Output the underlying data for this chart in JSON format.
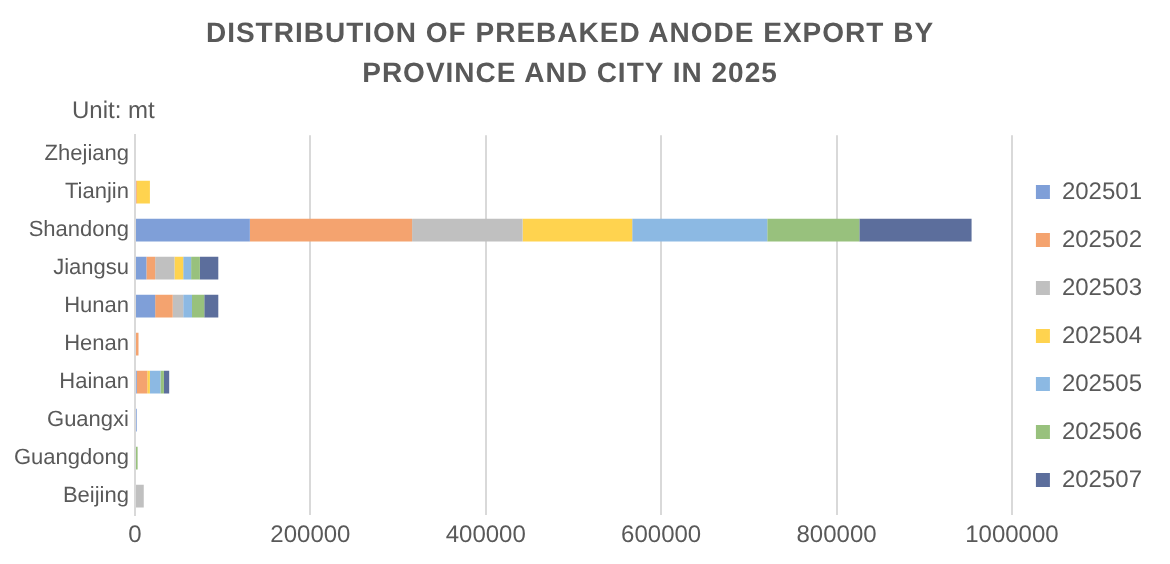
{
  "chart_data": {
    "type": "bar",
    "title": "DISTRIBUTION OF PREBAKED ANODE EXPORT BY PROVINCE AND CITY IN 2025",
    "subtitle": "Unit: mt",
    "orientation": "horizontal",
    "stacked": true,
    "categories": [
      "Zhejiang",
      "Tianjin",
      "Shandong",
      "Jiangsu",
      "Hunan",
      "Henan",
      "Hainan",
      "Guangxi",
      "Guangdong",
      "Beijing"
    ],
    "series": [
      {
        "name": "202501",
        "color": "#7f9fd8",
        "values": [
          0,
          0,
          131000,
          13000,
          23000,
          0,
          2000,
          2000,
          0,
          0
        ]
      },
      {
        "name": "202502",
        "color": "#f4a36f",
        "values": [
          0,
          2000,
          185000,
          10000,
          20000,
          4000,
          12000,
          0,
          0,
          0
        ]
      },
      {
        "name": "202503",
        "color": "#c0c0c0",
        "values": [
          0,
          0,
          126000,
          22000,
          12000,
          0,
          null,
          0,
          0,
          10000
        ]
      },
      {
        "name": "202504",
        "color": "#ffd34f",
        "values": [
          0,
          15000,
          125000,
          10000,
          0,
          0,
          3000,
          0,
          0,
          0
        ]
      },
      {
        "name": "202505",
        "color": "#8cb9e3",
        "values": [
          0,
          0,
          154000,
          9000,
          10000,
          0,
          12000,
          0,
          0,
          0
        ]
      },
      {
        "name": "202506",
        "color": "#98c17d",
        "values": [
          0,
          0,
          105000,
          10000,
          14000,
          0,
          4000,
          0,
          3000,
          0
        ]
      },
      {
        "name": "202507",
        "color": "#5c6e9c",
        "values": [
          0,
          0,
          128000,
          21000,
          16000,
          0,
          6000,
          0,
          0,
          0
        ]
      }
    ],
    "xlim": [
      0,
      1000000
    ],
    "xticks": [
      0,
      200000,
      400000,
      600000,
      800000,
      1000000
    ],
    "grid": "x",
    "legend": "right"
  }
}
